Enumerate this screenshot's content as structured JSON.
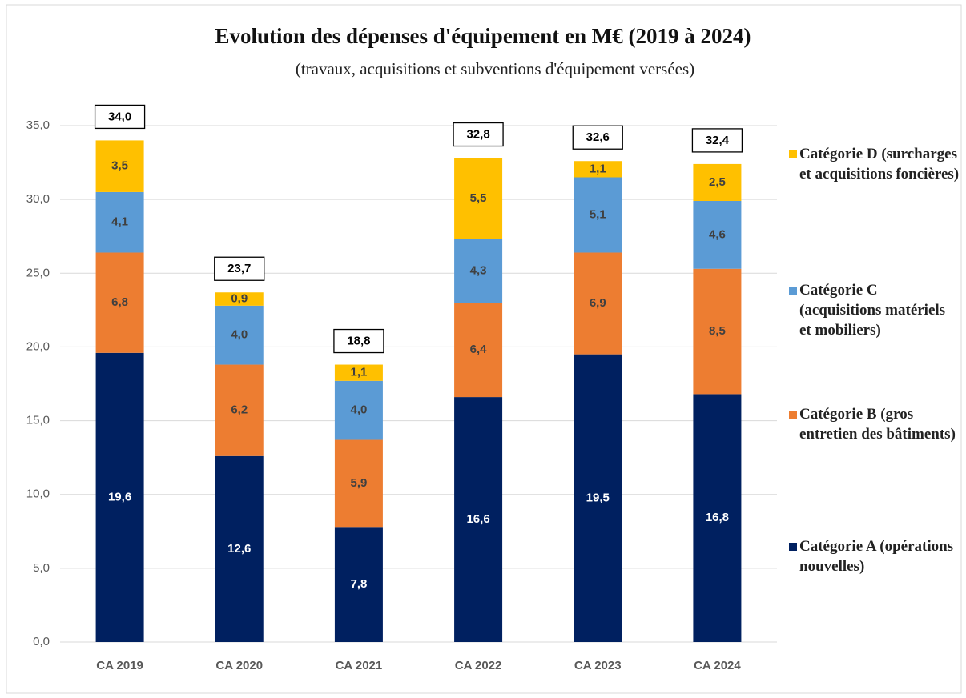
{
  "chart_data": {
    "type": "stacked_bar",
    "title": "Evolution des dépenses d'équipement en M€ (2019 à 2024)",
    "subtitle": "(travaux, acquisitions et subventions d'équipement versées)",
    "categories": [
      "CA 2019",
      "CA 2020",
      "CA 2021",
      "CA 2022",
      "CA 2023",
      "CA 2024"
    ],
    "series": [
      {
        "name": "Catégorie A (opérations nouvelles)",
        "color": "#002060",
        "values": [
          19.6,
          12.6,
          7.8,
          16.6,
          19.5,
          16.8
        ],
        "value_labels": [
          "19,6",
          "12,6",
          "7,8",
          "16,6",
          "19,5",
          "16,8"
        ]
      },
      {
        "name": "Catégorie B (gros entretien des bâtiments)",
        "color": "#ed7d31",
        "values": [
          6.8,
          6.2,
          5.9,
          6.4,
          6.9,
          8.5
        ],
        "value_labels": [
          "6,8",
          "6,2",
          "5,9",
          "6,4",
          "6,9",
          "8,5"
        ]
      },
      {
        "name": "Catégorie C (acquisitions matériels et mobiliers)",
        "color": "#5b9bd5",
        "values": [
          4.1,
          4.0,
          4.0,
          4.3,
          5.1,
          4.6
        ],
        "value_labels": [
          "4,1",
          "4,0",
          "4,0",
          "4,3",
          "5,1",
          "4,6"
        ]
      },
      {
        "name": "Catégorie D (surcharges et acquisitions foncières)",
        "color": "#ffc000",
        "values": [
          3.5,
          0.9,
          1.1,
          5.5,
          1.1,
          2.5
        ],
        "value_labels": [
          "3,5",
          "0,9",
          "1,1",
          "5,5",
          "1,1",
          "2,5"
        ]
      }
    ],
    "totals": [
      34.0,
      23.7,
      18.8,
      32.8,
      32.6,
      32.4
    ],
    "total_labels": [
      "34,0",
      "23,7",
      "18,8",
      "32,8",
      "32,6",
      "32,4"
    ],
    "ylim": [
      0,
      35
    ],
    "yticks": [
      {
        "value": 0,
        "label": "0,0"
      },
      {
        "value": 5,
        "label": "5,0"
      },
      {
        "value": 10,
        "label": "10,0"
      },
      {
        "value": 15,
        "label": "15,0"
      },
      {
        "value": 20,
        "label": "20,0"
      },
      {
        "value": 25,
        "label": "25,0"
      },
      {
        "value": 30,
        "label": "30,0"
      },
      {
        "value": 35,
        "label": "35,0"
      }
    ],
    "grid": true,
    "legend": "right"
  }
}
